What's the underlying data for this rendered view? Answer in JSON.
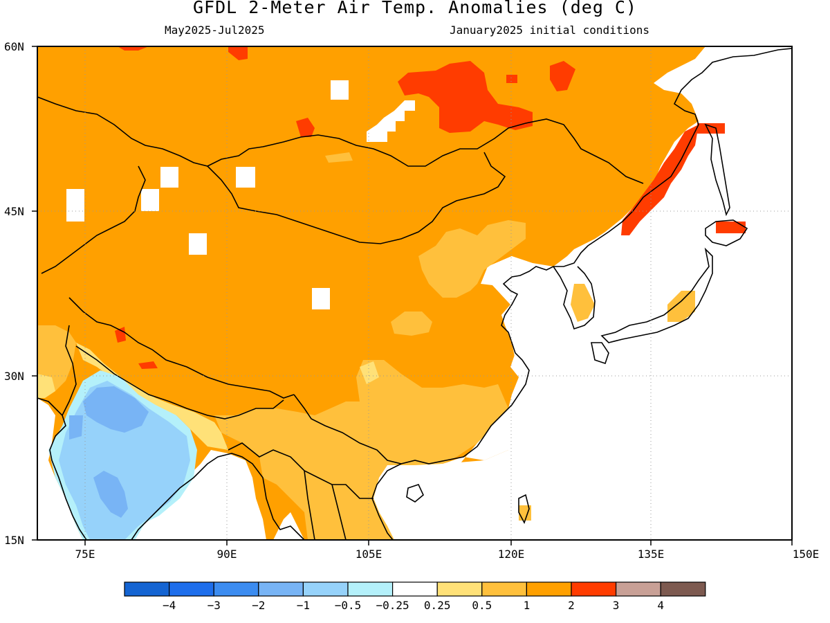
{
  "header": {
    "title": "GFDL 2-Meter Air Temp. Anomalies (deg C)",
    "period": "May2025-Jul2025",
    "initial_conditions": "January2025 initial conditions"
  },
  "map": {
    "region": "East Asia",
    "lat_labels": [
      "60N",
      "45N",
      "30N",
      "15N"
    ],
    "lon_labels": [
      "75E",
      "90E",
      "105E",
      "120E",
      "135E",
      "150E"
    ],
    "lat_range": [
      15,
      60
    ],
    "lon_range": [
      70,
      150
    ],
    "gridlines": "dotted"
  },
  "colorbar": {
    "colors": [
      "#1464d2",
      "#1e6eeb",
      "#3c8cf0",
      "#78b4f5",
      "#96d2fa",
      "#b4f0fa",
      "#ffffff",
      "#ffe178",
      "#ffc03c",
      "#ffa000",
      "#ff3c00",
      "#c8a096",
      "#7d5a50"
    ],
    "labels": [
      "-4",
      "-3",
      "-2",
      "-1",
      "-0.5",
      "-0.25",
      "0.25",
      "0.5",
      "1",
      "2",
      "3",
      "4"
    ]
  },
  "colors": {
    "anomaly_1_to_2": "#ffa000",
    "anomaly_2_to_3": "#ff3c00",
    "anomaly_0.5_to_1": "#ffc03c",
    "anomaly_0.25_to_0.5": "#ffe178",
    "anomaly_neg_1_to_neg_0.5": "#96d2fa",
    "anomaly_neg_2_to_neg_1": "#78b4f5",
    "anomaly_neg_0.5_to_neg_0.25": "#b4f0fa"
  }
}
